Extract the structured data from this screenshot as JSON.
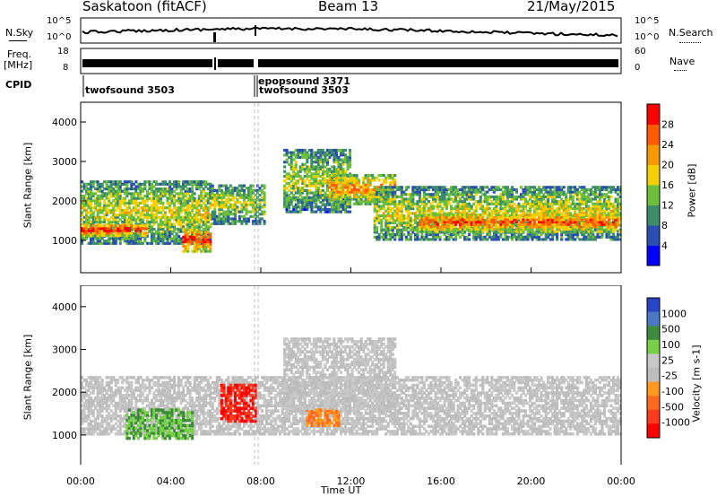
{
  "header": {
    "station": "Saskatoon (fitACF)",
    "beam": "Beam 13",
    "date": "21/May/2015"
  },
  "noise_panel": {
    "left_label": "N.Sky",
    "right_label": "N.Search",
    "left_ticks": [
      "10^5",
      "10^0"
    ],
    "right_ticks": [
      "10^5",
      "10^0"
    ]
  },
  "freq_panel": {
    "left_label": "Freq.",
    "left_units": "[MHz]",
    "right_label": "Nave",
    "left_ticks": [
      "18",
      "8"
    ],
    "right_ticks": [
      "60",
      "0"
    ]
  },
  "cpid": {
    "label": "CPID",
    "entries": [
      {
        "name": "twofsound 3503",
        "start": "00:00"
      },
      {
        "name": "epopsound 3371",
        "start": "07:50"
      },
      {
        "name": "twofsound 3503",
        "start": "07:58"
      }
    ]
  },
  "colors": {
    "power_scale": [
      "#0000ff",
      "#2a4fb0",
      "#3d8c6b",
      "#6cbf3c",
      "#f5d000",
      "#f59a00",
      "#ff5a00",
      "#ff0000"
    ],
    "velocity_scale": [
      "#2a44c8",
      "#4a78c4",
      "#3d8c3d",
      "#78d048",
      "#c8c8c8",
      "#bdbdbd",
      "#ff9a1f",
      "#ff6a1f",
      "#ff3a1f",
      "#ff0000"
    ]
  },
  "chart_data": [
    {
      "type": "heatmap",
      "quantity": "Power",
      "ylabel": "Slant Range [km]",
      "ylim": [
        180,
        4500
      ],
      "y_ticks": [
        1000,
        2000,
        3000,
        4000
      ],
      "x_ticks": [
        "00:00",
        "04:00",
        "08:00",
        "12:00",
        "16:00",
        "20:00",
        "00:00"
      ],
      "xlim_hours": [
        0,
        24
      ],
      "colorbar_label": "Power [dB]",
      "colorbar_ticks": [
        "4",
        "8",
        "12",
        "16",
        "20",
        "24",
        "28"
      ],
      "colorbar_range": [
        0,
        32
      ],
      "regions": [
        {
          "t0": 0.0,
          "t1": 5.8,
          "r0": 900,
          "r1": 2500,
          "level": 0.55
        },
        {
          "t0": 0.0,
          "t1": 3.0,
          "r0": 1100,
          "r1": 1400,
          "level": 0.95
        },
        {
          "t0": 4.5,
          "t1": 5.8,
          "r0": 700,
          "r1": 1300,
          "level": 0.9
        },
        {
          "t0": 5.8,
          "t1": 8.2,
          "r0": 1400,
          "r1": 2400,
          "level": 0.5
        },
        {
          "t0": 9.0,
          "t1": 12.0,
          "r0": 1700,
          "r1": 3300,
          "level": 0.5
        },
        {
          "t0": 11.0,
          "t1": 14.0,
          "r0": 1900,
          "r1": 2700,
          "level": 0.75
        },
        {
          "t0": 13.0,
          "t1": 24.0,
          "r0": 1000,
          "r1": 2400,
          "level": 0.55
        },
        {
          "t0": 15.0,
          "t1": 24.0,
          "r0": 1200,
          "r1": 1700,
          "level": 0.85
        }
      ]
    },
    {
      "type": "heatmap",
      "quantity": "Velocity",
      "ylabel": "Slant Range [km]",
      "ylim": [
        180,
        4500
      ],
      "y_ticks": [
        1000,
        2000,
        3000,
        4000
      ],
      "x_ticks": [
        "00:00",
        "04:00",
        "08:00",
        "12:00",
        "16:00",
        "20:00",
        "00:00"
      ],
      "xlim_hours": [
        0,
        24
      ],
      "xlabel": "Time UT",
      "colorbar_label": "Velocity [m s-1]",
      "colorbar_ticks": [
        "1000",
        "500",
        "100",
        "25",
        "-25",
        "-100",
        "-500",
        "-1000"
      ],
      "regions": [
        {
          "t0": 0.0,
          "t1": 24.0,
          "r0": 1000,
          "r1": 2400,
          "level": "near-zero"
        },
        {
          "t0": 2.0,
          "t1": 5.0,
          "r0": 900,
          "r1": 1600,
          "level": "positive"
        },
        {
          "t0": 6.2,
          "t1": 7.8,
          "r0": 1300,
          "r1": 2200,
          "level": "negative"
        },
        {
          "t0": 10.0,
          "t1": 11.5,
          "r0": 1200,
          "r1": 1600,
          "level": "moderate-negative"
        },
        {
          "t0": 9.0,
          "t1": 14.0,
          "r0": 1600,
          "r1": 3300,
          "level": "near-zero"
        }
      ]
    }
  ]
}
